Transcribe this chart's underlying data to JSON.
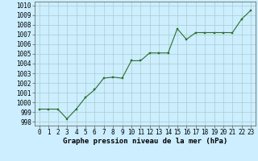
{
  "x": [
    0,
    1,
    2,
    3,
    4,
    5,
    6,
    7,
    8,
    9,
    10,
    11,
    12,
    13,
    14,
    15,
    16,
    17,
    18,
    19,
    20,
    21,
    22,
    23
  ],
  "y": [
    999.3,
    999.3,
    999.3,
    998.3,
    999.3,
    1000.5,
    1001.3,
    1002.5,
    1002.6,
    1002.5,
    1004.3,
    1004.3,
    1005.1,
    1005.1,
    1005.1,
    1007.6,
    1006.5,
    1007.2,
    1007.2,
    1007.2,
    1007.2,
    1007.2,
    1008.6,
    1009.5
  ],
  "line_color": "#2d6e2d",
  "marker_color": "#2d6e2d",
  "bg_color": "#cceeff",
  "grid_color": "#aacccc",
  "xlabel": "Graphe pression niveau de la mer (hPa)",
  "xlabel_fontsize": 6.5,
  "ylabel_ticks": [
    998,
    999,
    1000,
    1001,
    1002,
    1003,
    1004,
    1005,
    1006,
    1007,
    1008,
    1009,
    1010
  ],
  "ylim": [
    997.6,
    1010.4
  ],
  "xlim": [
    -0.5,
    23.5
  ],
  "tick_fontsize": 5.5
}
